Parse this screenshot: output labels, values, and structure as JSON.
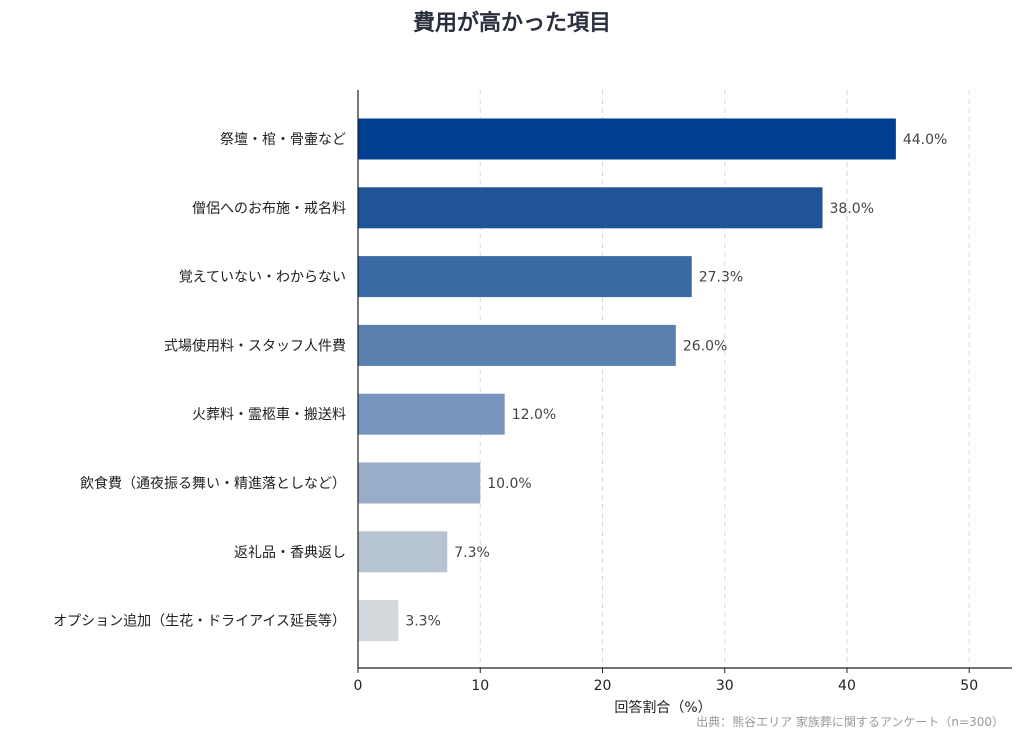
{
  "chart_data": {
    "type": "bar",
    "orientation": "horizontal",
    "title": "費用が高かった項目",
    "xlabel": "回答割合（%）",
    "ylabel": "",
    "xlim": [
      0,
      53.5
    ],
    "xticks": [
      0,
      10,
      20,
      30,
      40,
      50
    ],
    "grid": "vertical dashed",
    "categories": [
      "祭壇・棺・骨壷など",
      "僧侶へのお布施・戒名料",
      "覚えていない・わからない",
      "式場使用料・スタッフ人件費",
      "火葬料・霊柩車・搬送料",
      "飲食費（通夜振る舞い・精進落としなど）",
      "返礼品・香典返し",
      "オプション追加（生花・ドライアイス延長等）"
    ],
    "values": [
      44.0,
      38.0,
      27.3,
      26.0,
      12.0,
      10.0,
      7.3,
      3.3
    ],
    "value_labels": [
      "44.0%",
      "38.0%",
      "27.3%",
      "26.0%",
      "12.0%",
      "10.0%",
      "7.3%",
      "3.3%"
    ],
    "colors": [
      "#003f8f",
      "#1f5597",
      "#3a6aa4",
      "#5a80b0",
      "#7896bd",
      "#98adc8",
      "#b6c4d2",
      "#d2d8dc"
    ],
    "source_note": "出典：熊谷エリア 家族葬に関するアンケート（n=300）"
  }
}
